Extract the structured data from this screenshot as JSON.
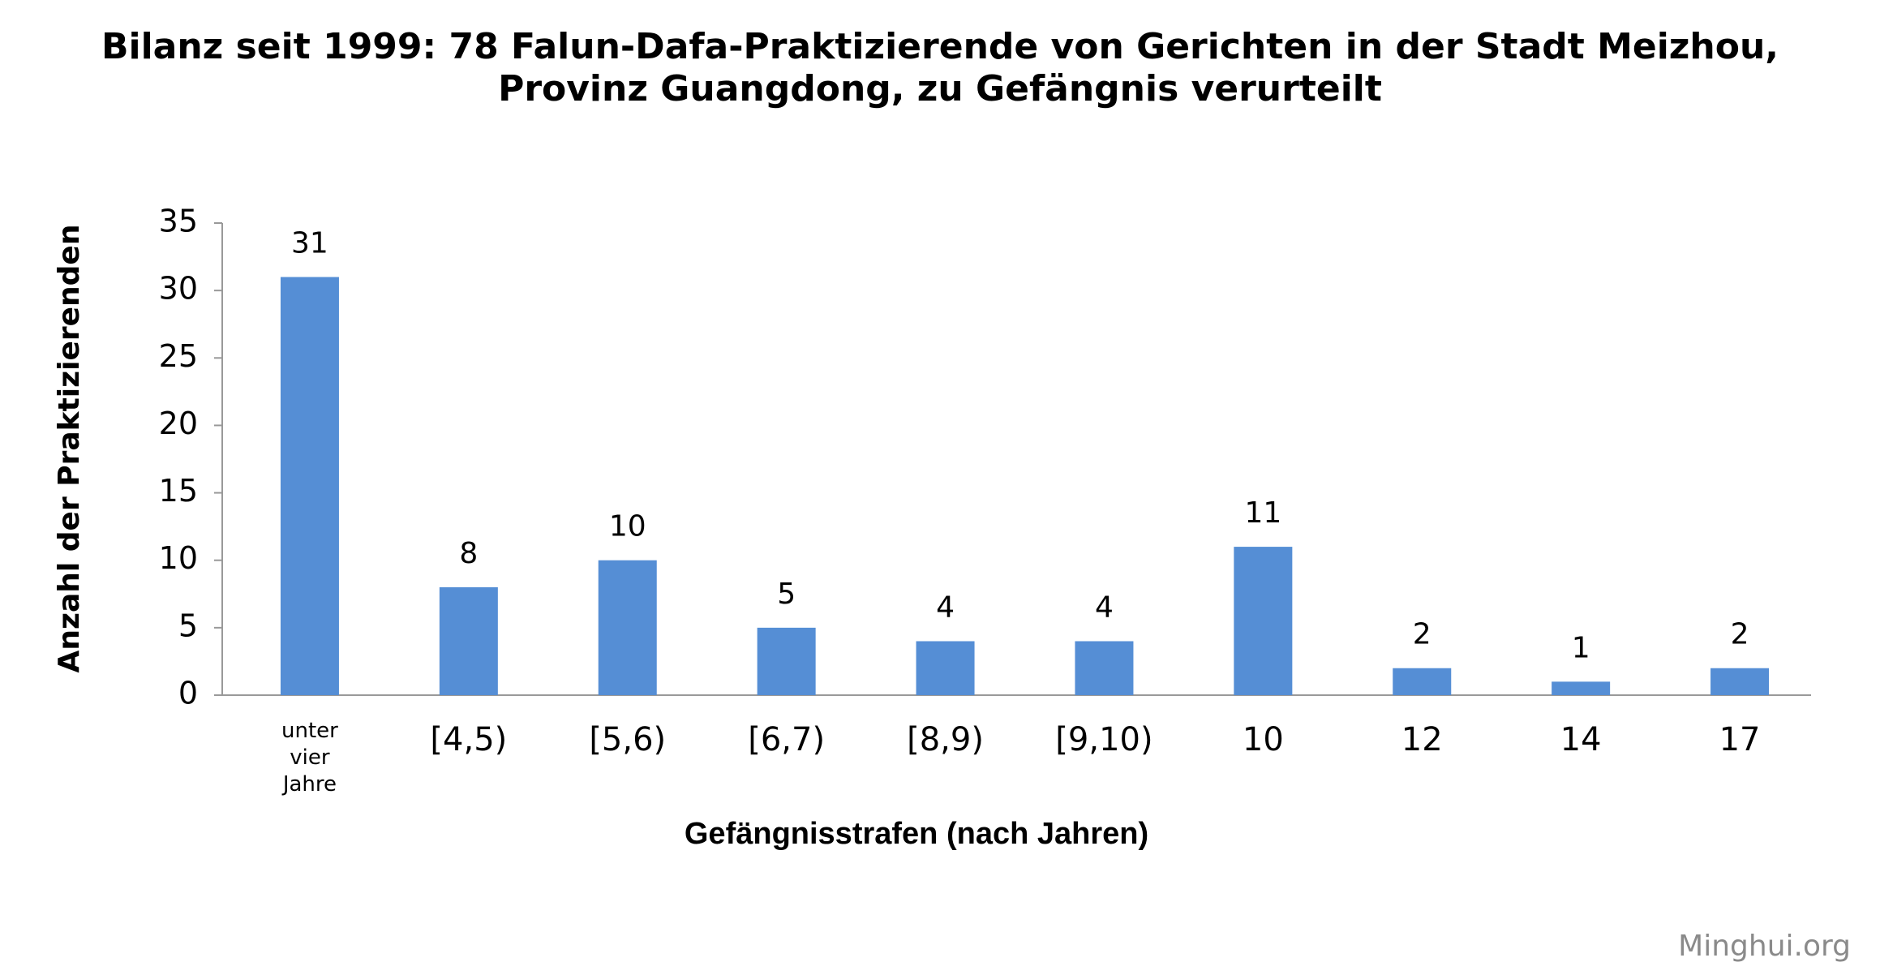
{
  "chart_data": {
    "type": "bar",
    "title": "Bilanz seit 1999: 78 Falun-Dafa-Praktizierende von Gerichten in der Stadt Meizhou,",
    "subtitle": "Provinz Guangdong, zu Gefängnis verurteilt",
    "x_label": "Gefängnisstrafen (nach Jahren)",
    "y_label": "Anzahl der Praktizierenden",
    "watermark": "Minghui.org",
    "categories": [
      "unter vier Jahre",
      "[4,5)",
      "[5,6)",
      "[6,7)",
      "[8,9)",
      "[9,10)",
      "10",
      "12",
      "14",
      "17"
    ],
    "values": [
      31,
      8,
      10,
      5,
      4,
      4,
      11,
      2,
      1,
      2
    ],
    "color": "#558ed5",
    "ylim": [
      0,
      35
    ],
    "yticks": [
      0,
      5,
      10,
      15,
      20,
      25,
      30,
      35
    ],
    "grid": false
  }
}
